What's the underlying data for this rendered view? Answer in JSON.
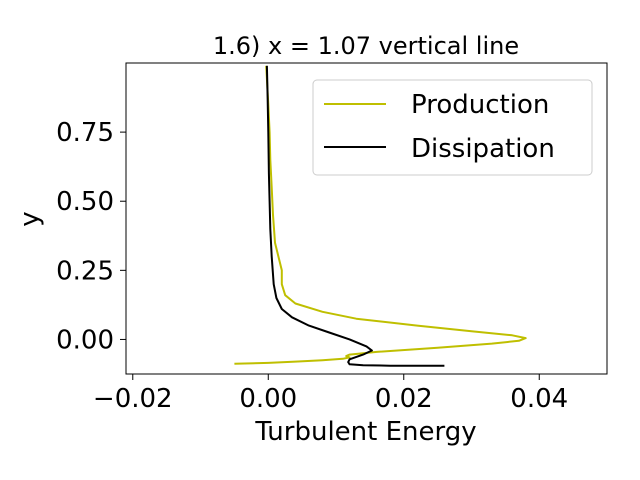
{
  "chart_data": {
    "type": "line",
    "title": "1.6) x = 1.07 vertical line",
    "xlabel": "Turbulent Energy",
    "ylabel": "y",
    "xlim": [
      -0.021,
      0.05
    ],
    "ylim": [
      -0.125,
      1.0
    ],
    "xticks": [
      -0.02,
      0.0,
      0.02,
      0.04
    ],
    "xtick_labels": [
      "−0.02",
      "0.00",
      "0.02",
      "0.04"
    ],
    "yticks": [
      0.0,
      0.25,
      0.5,
      0.75
    ],
    "ytick_labels": [
      "0.00",
      "0.25",
      "0.50",
      "0.75"
    ],
    "grid": false,
    "legend_position": "upper-right",
    "series": [
      {
        "name": "Production",
        "color": "#bfbf00",
        "x": [
          -0.005,
          0.0,
          0.004,
          0.008,
          0.011,
          0.012,
          0.0115,
          0.012,
          0.016,
          0.025,
          0.033,
          0.037,
          0.038,
          0.036,
          0.03,
          0.022,
          0.013,
          0.008,
          0.004,
          0.0025,
          0.002,
          0.002,
          0.0015,
          0.001,
          0.0007,
          0.0005,
          0.0003,
          0.0002,
          0.0,
          -0.0003
        ],
        "y": [
          -0.088,
          -0.085,
          -0.08,
          -0.075,
          -0.07,
          -0.065,
          -0.06,
          -0.055,
          -0.045,
          -0.03,
          -0.015,
          -0.005,
          0.005,
          0.015,
          0.03,
          0.05,
          0.075,
          0.1,
          0.13,
          0.16,
          0.2,
          0.25,
          0.3,
          0.35,
          0.45,
          0.55,
          0.65,
          0.75,
          0.85,
          0.99
        ]
      },
      {
        "name": "Dissipation",
        "color": "#000000",
        "x": [
          0.026,
          0.018,
          0.014,
          0.012,
          0.0118,
          0.012,
          0.014,
          0.0153,
          0.0145,
          0.012,
          0.009,
          0.006,
          0.0035,
          0.002,
          0.0012,
          0.0008,
          0.0005,
          0.0003,
          0.0002,
          0.0001,
          0.0,
          -0.0001,
          -0.0002
        ],
        "y": [
          -0.095,
          -0.095,
          -0.093,
          -0.09,
          -0.082,
          -0.072,
          -0.055,
          -0.04,
          -0.025,
          0.0,
          0.025,
          0.05,
          0.08,
          0.11,
          0.15,
          0.2,
          0.3,
          0.4,
          0.5,
          0.6,
          0.75,
          0.88,
          0.99
        ]
      }
    ]
  }
}
